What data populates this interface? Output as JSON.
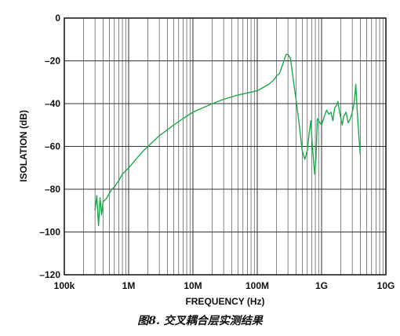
{
  "caption": "图8. 交叉耦合层实测结果",
  "chart_data": {
    "type": "line",
    "x_scale": "log",
    "xlabel": "FREQUENCY (Hz)",
    "ylabel": "ISOLATION (dB)",
    "xlim": [
      100000,
      10000000000
    ],
    "ylim": [
      -120,
      0
    ],
    "x_ticks": [
      {
        "value": 100000,
        "label": "100k"
      },
      {
        "value": 1000000,
        "label": "1M"
      },
      {
        "value": 10000000,
        "label": "10M"
      },
      {
        "value": 100000000,
        "label": "100M"
      },
      {
        "value": 1000000000,
        "label": "1G"
      },
      {
        "value": 10000000000,
        "label": "10G"
      }
    ],
    "y_ticks": [
      {
        "value": 0,
        "label": "0"
      },
      {
        "value": -20,
        "label": "–20"
      },
      {
        "value": -40,
        "label": "–40"
      },
      {
        "value": -60,
        "label": "–60"
      },
      {
        "value": -80,
        "label": "–80"
      },
      {
        "value": -100,
        "label": "–100"
      },
      {
        "value": -120,
        "label": "–120"
      }
    ],
    "grid": true,
    "series_color": "#1aaa4a",
    "series": [
      {
        "x": [
          300000,
          320000,
          340000,
          360000,
          380000,
          400000,
          430000,
          460000,
          500000,
          550000,
          600000,
          700000,
          800000,
          1000000,
          1300000,
          1700000,
          2000000,
          3000000,
          5000000,
          7000000,
          10000000,
          20000000,
          30000000,
          50000000,
          70000000,
          100000000,
          150000000,
          180000000,
          200000000,
          220000000,
          240000000,
          260000000,
          280000000,
          300000000,
          330000000,
          360000000,
          400000000,
          450000000,
          500000000,
          550000000,
          600000000,
          640000000,
          680000000,
          720000000,
          780000000,
          820000000,
          860000000,
          900000000,
          1000000000,
          1100000000,
          1200000000,
          1300000000,
          1400000000,
          1500000000,
          1600000000,
          1700000000,
          1800000000,
          1900000000,
          2000000000,
          2100000000,
          2200000000,
          2300000000,
          2400000000,
          2600000000,
          2700000000,
          2800000000,
          3000000000,
          3200000000,
          3300000000,
          3400000000,
          3600000000,
          3800000000,
          4000000000
        ],
        "y": [
          -90,
          -83,
          -97,
          -84,
          -92,
          -86,
          -85,
          -84,
          -82,
          -80,
          -79,
          -76,
          -73,
          -70,
          -66,
          -62,
          -60,
          -55,
          -50,
          -47,
          -44,
          -40,
          -38,
          -36,
          -35,
          -34,
          -31,
          -29,
          -27,
          -26,
          -23,
          -20,
          -17,
          -17,
          -19,
          -28,
          -38,
          -50,
          -62,
          -66,
          -62,
          -54,
          -48,
          -60,
          -73,
          -65,
          -47,
          -48,
          -50,
          -46,
          -43,
          -45,
          -44,
          -48,
          -42,
          -41,
          -39,
          -44,
          -47,
          -50,
          -46,
          -45,
          -44,
          -49,
          -48,
          -47,
          -44,
          -40,
          -36,
          -31,
          -44,
          -55,
          -64
        ]
      }
    ]
  }
}
